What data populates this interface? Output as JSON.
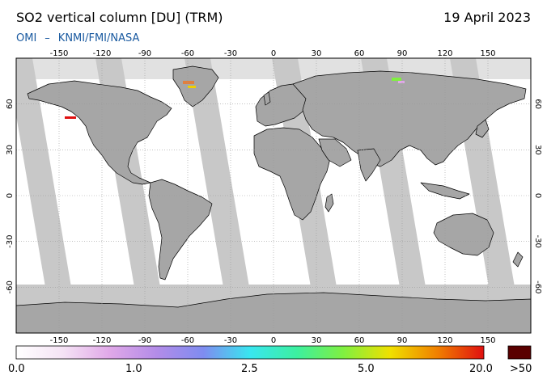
{
  "header": {
    "title": "SO2 vertical column [DU] (TRM)",
    "date": "19 April 2023",
    "credit_instrument": "OMI",
    "credit_sep": "–",
    "credit_agencies": "KNMI/FMI/NASA"
  },
  "map": {
    "projection": "equirectangular",
    "lon_range": [
      -180,
      180
    ],
    "lat_range": [
      -90,
      90
    ],
    "lon_ticks": [
      -150,
      -120,
      -90,
      -60,
      -30,
      0,
      30,
      60,
      90,
      120,
      150
    ],
    "lat_ticks": [
      60,
      30,
      0,
      -30,
      -60
    ],
    "colors": {
      "ocean": "#ffffff",
      "land": "#a6a6a6",
      "no_data_swath": "#c8c8c8",
      "coastline": "#000000",
      "grid": "#9a9a9a"
    }
  },
  "colorbar": {
    "labels": [
      "0.0",
      "1.0",
      "2.5",
      "5.0",
      "20.0",
      ">50"
    ],
    "stops": [
      "#ffffff",
      "#f5e3f5",
      "#e0a8e8",
      "#b38ce8",
      "#7f8cf0",
      "#39e6f0",
      "#3cf0a0",
      "#80f040",
      "#f0e000",
      "#f08000",
      "#e01010"
    ],
    "overflow_color": "#5a0000"
  }
}
